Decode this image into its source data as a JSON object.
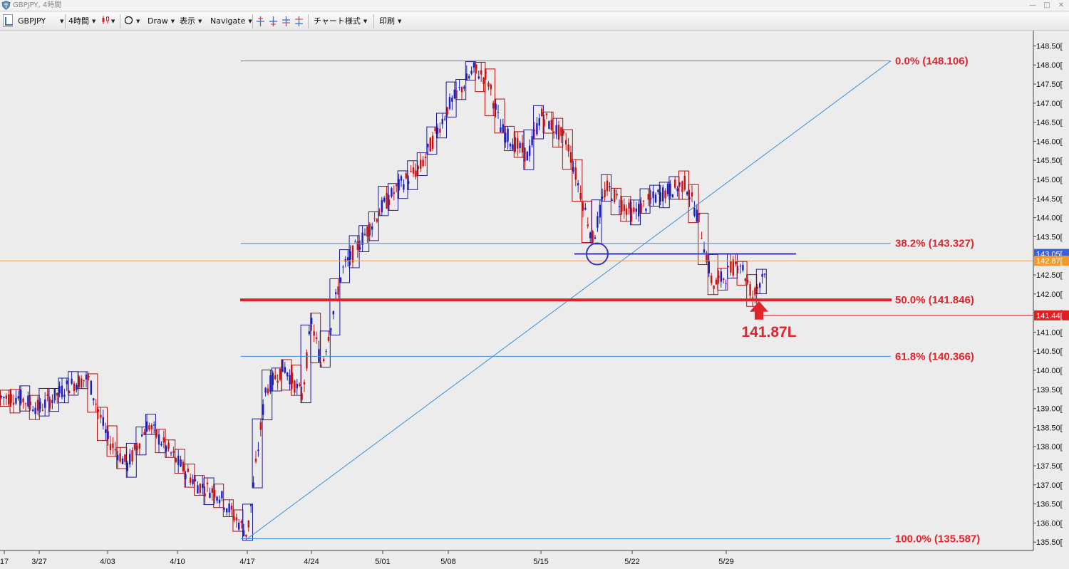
{
  "window": {
    "title": "GBPJPY, 4時間"
  },
  "toolbar": {
    "symbol": "GBPJPY",
    "timeframe": "4時間",
    "draw": "Draw",
    "display": "表示",
    "navigate": "Navigate",
    "chart_style": "チャート様式",
    "print": "印刷"
  },
  "colors": {
    "up_candle": "#1c1cc8",
    "down_candle": "#cc1111",
    "fib_line": "#3d8fdc",
    "fib_label": "#e0242c",
    "support_line": "#e0242c",
    "resistance_line": "#3535c0",
    "bid_line": "#f0a050",
    "range_box_up": "#1c1c90",
    "range_box_down": "#b01010",
    "background": "#ececec"
  },
  "chart_data": {
    "type": "candlestick",
    "symbol": "GBPJPY",
    "timeframe": "4時間",
    "y_ticks": [
      "148.50",
      "148.00",
      "147.50",
      "147.00",
      "146.50",
      "146.00",
      "145.50",
      "145.00",
      "144.50",
      "144.00",
      "143.50",
      "143.00",
      "142.50",
      "142.00",
      "141.50",
      "141.00",
      "140.50",
      "140.00",
      "139.50",
      "139.00",
      "138.50",
      "138.00",
      "137.50",
      "137.00",
      "136.50",
      "136.00",
      "135.50"
    ],
    "y_tick_suffix": "[",
    "ylim": [
      135.28,
      148.9
    ],
    "x_ticks": [
      "17",
      "3/27",
      "4/03",
      "4/10",
      "4/17",
      "4/24",
      "5/01",
      "5/08",
      "5/15",
      "5/22",
      "5/29"
    ],
    "price_tags": [
      {
        "label": "143.05",
        "value": 143.05,
        "style": "resistance"
      },
      {
        "label": "142.87",
        "value": 142.87,
        "style": "bid"
      },
      {
        "label": "141.44",
        "value": 141.44,
        "style": "low"
      }
    ],
    "fibonacci": [
      {
        "label": "0.0%  (148.106)",
        "value": 148.106
      },
      {
        "label": "38.2%  (143.327)",
        "value": 143.327
      },
      {
        "label": "50.0%  (141.846)",
        "value": 141.846
      },
      {
        "label": "61.8%  (140.366)",
        "value": 140.366
      },
      {
        "label": "100.0%  (135.587)",
        "value": 135.587
      }
    ],
    "fib_trend_line": {
      "from_date": "4/17",
      "from_value": 135.587,
      "to_value": 148.106
    },
    "annotations": {
      "low_label": "141.87L",
      "low_value": 141.87,
      "horizontal_resistance": 143.05,
      "horizontal_support": 141.846
    },
    "series_waypoints": [
      {
        "date": "3/23",
        "price": 139.3
      },
      {
        "date": "3/27",
        "price": 139.0
      },
      {
        "date": "3/30",
        "price": 139.6
      },
      {
        "date": "4/01",
        "price": 139.8
      },
      {
        "date": "4/03",
        "price": 138.2
      },
      {
        "date": "4/05",
        "price": 137.5
      },
      {
        "date": "4/07",
        "price": 138.6
      },
      {
        "date": "4/10",
        "price": 137.6
      },
      {
        "date": "4/12",
        "price": 137.0
      },
      {
        "date": "4/14",
        "price": 136.8
      },
      {
        "date": "4/17",
        "price": 135.7
      },
      {
        "date": "4/19",
        "price": 139.5
      },
      {
        "date": "4/21",
        "price": 140.1
      },
      {
        "date": "4/23",
        "price": 139.3
      },
      {
        "date": "4/24",
        "price": 141.3
      },
      {
        "date": "4/25",
        "price": 140.1
      },
      {
        "date": "4/27",
        "price": 142.6
      },
      {
        "date": "5/01",
        "price": 144.3
      },
      {
        "date": "5/03",
        "price": 144.9
      },
      {
        "date": "5/05",
        "price": 145.3
      },
      {
        "date": "5/08",
        "price": 146.9
      },
      {
        "date": "5/10",
        "price": 147.9
      },
      {
        "date": "5/11",
        "price": 147.6
      },
      {
        "date": "5/12",
        "price": 146.3
      },
      {
        "date": "5/14",
        "price": 145.6
      },
      {
        "date": "5/15",
        "price": 146.7
      },
      {
        "date": "5/17",
        "price": 146.0
      },
      {
        "date": "5/19",
        "price": 143.4
      },
      {
        "date": "5/20",
        "price": 144.8
      },
      {
        "date": "5/22",
        "price": 144.1
      },
      {
        "date": "5/24",
        "price": 144.6
      },
      {
        "date": "5/26",
        "price": 144.9
      },
      {
        "date": "5/27",
        "price": 143.9
      },
      {
        "date": "5/28",
        "price": 142.2
      },
      {
        "date": "5/29",
        "price": 142.5
      },
      {
        "date": "5/30",
        "price": 142.9
      },
      {
        "date": "5/31",
        "price": 141.9
      },
      {
        "date": "6/01",
        "price": 142.8
      }
    ]
  }
}
